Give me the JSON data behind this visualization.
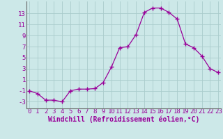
{
  "x": [
    0,
    1,
    2,
    3,
    4,
    5,
    6,
    7,
    8,
    9,
    10,
    11,
    12,
    13,
    14,
    15,
    16,
    17,
    18,
    19,
    20,
    21,
    22,
    23
  ],
  "y": [
    -1.0,
    -1.5,
    -2.7,
    -2.7,
    -3.0,
    -1.0,
    -0.7,
    -0.7,
    -0.6,
    0.5,
    3.3,
    6.8,
    7.0,
    9.2,
    13.2,
    14.0,
    14.0,
    13.2,
    12.0,
    7.5,
    6.8,
    5.3,
    3.0,
    2.3
  ],
  "line_color": "#990099",
  "marker": "+",
  "marker_size": 4,
  "bg_color": "#cce8e8",
  "grid_color": "#aacccc",
  "xlabel": "Windchill (Refroidissement éolien,°C)",
  "xlabel_color": "#990099",
  "ylabel_ticks": [
    -3,
    -1,
    1,
    3,
    5,
    7,
    9,
    11,
    13
  ],
  "xtick_labels": [
    "0",
    "1",
    "2",
    "3",
    "4",
    "5",
    "6",
    "7",
    "8",
    "9",
    "10",
    "11",
    "12",
    "13",
    "14",
    "15",
    "16",
    "17",
    "18",
    "19",
    "20",
    "21",
    "22",
    "23"
  ],
  "ylim": [
    -4.2,
    15.2
  ],
  "xlim": [
    -0.3,
    23.3
  ],
  "tick_fontsize": 6.5,
  "xlabel_fontsize": 7.0,
  "lw": 0.9
}
